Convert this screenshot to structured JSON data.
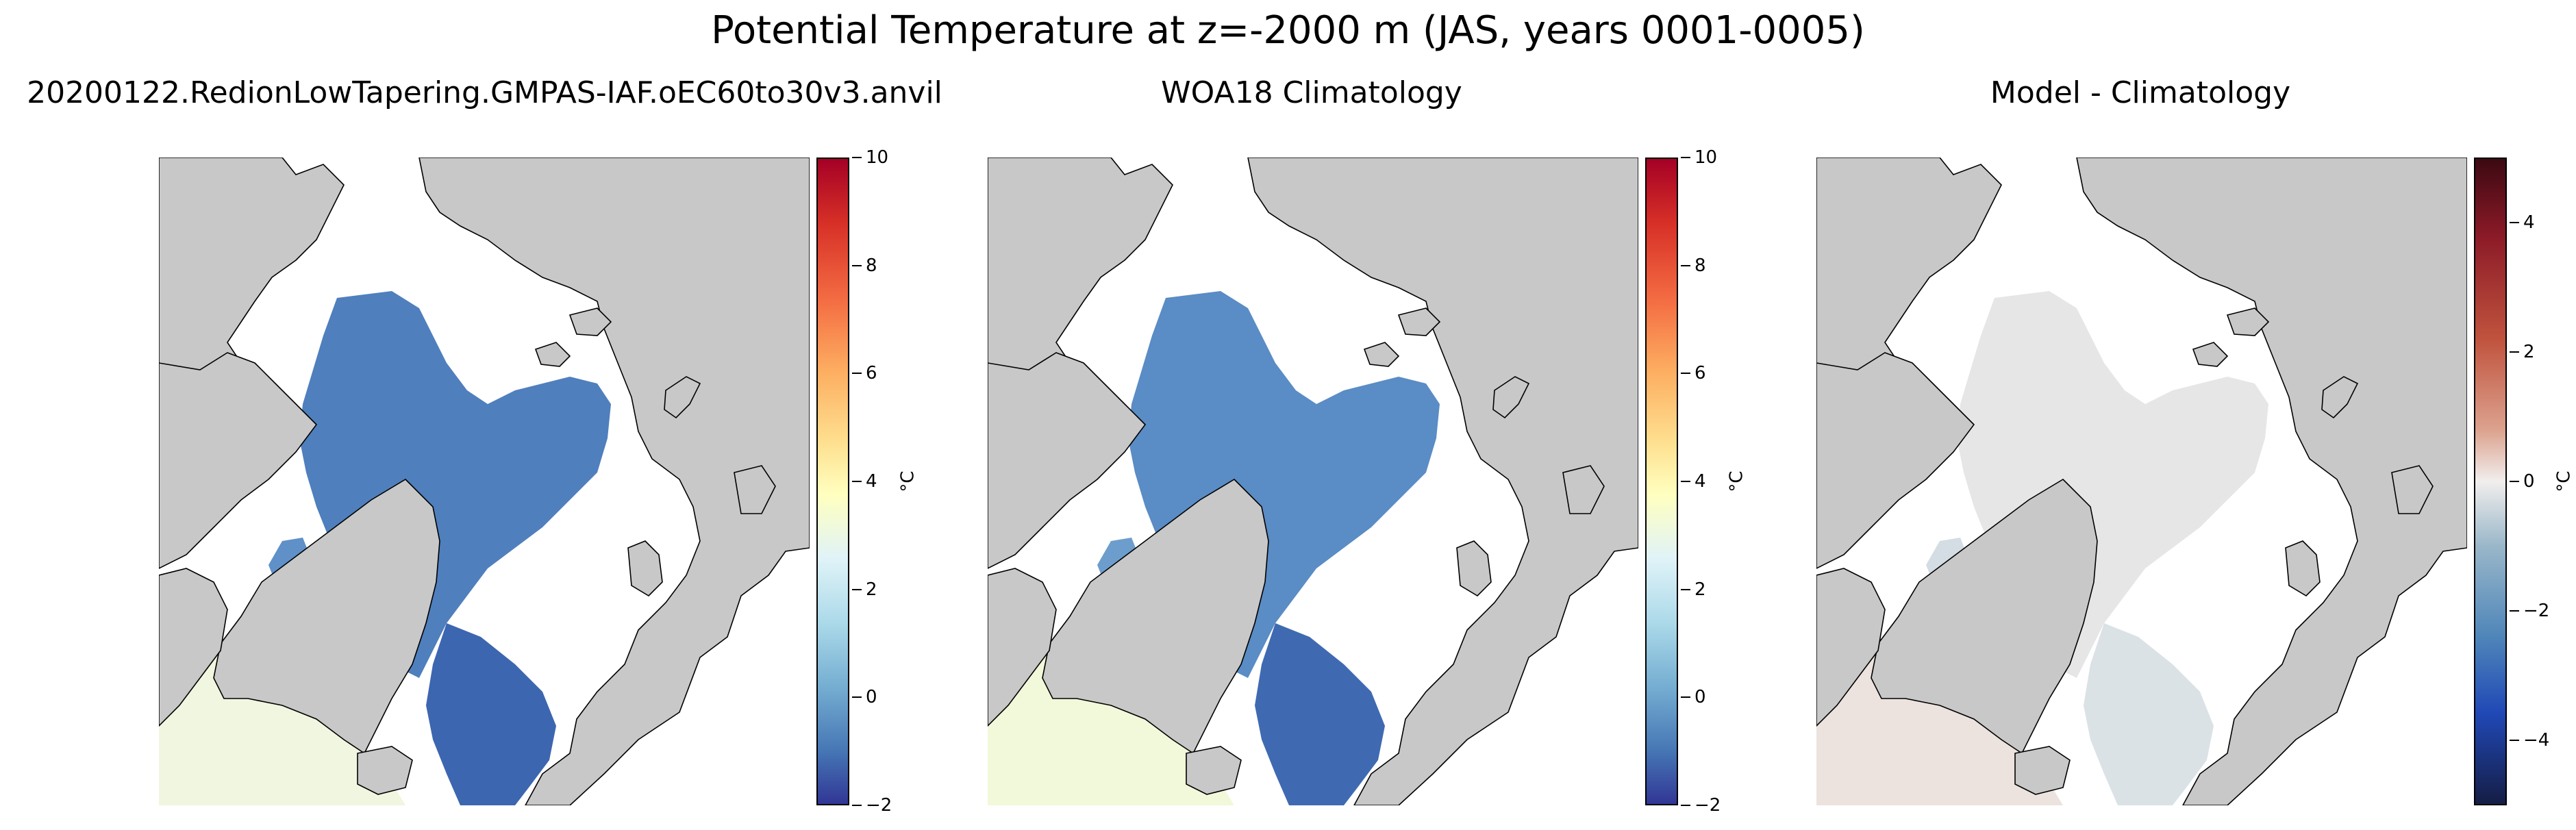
{
  "title": "Potential Temperature at z=-2000 m (JAS, years 0001-0005)",
  "colors": {
    "land": "#c8c8c8",
    "coast": "#000000",
    "ocean_nodata": "#ffffff"
  },
  "chart_data": [
    {
      "type": "heatmap",
      "title": "20200122.RedionLowTapering.GMPAS-IAF.oEC60to30v3.anvil",
      "colorbar": {
        "label": "°C",
        "range": [
          -2,
          10
        ],
        "ticks": [
          "10",
          "8",
          "6",
          "4",
          "2",
          "0",
          "−2"
        ],
        "colormap": "RdYlBu_r"
      },
      "fields": {
        "arctic_basin": "≈ -0.5 °C",
        "nordic_seas": "≈ -0.9 °C",
        "baffin_bay": "≈ 0 °C",
        "north_atlantic": "≈ 3.5 °C"
      }
    },
    {
      "type": "heatmap",
      "title": "WOA18 Climatology",
      "colorbar": {
        "label": "°C",
        "range": [
          -2,
          10
        ],
        "ticks": [
          "10",
          "8",
          "6",
          "4",
          "2",
          "0",
          "−2"
        ],
        "colormap": "RdYlBu_r"
      },
      "fields": {
        "arctic_basin": "≈ -0.4 °C",
        "nordic_seas": "≈ -0.9 °C",
        "baffin_bay": "≈ 0.3 °C",
        "north_atlantic": "≈ 3.5 °C"
      }
    },
    {
      "type": "heatmap",
      "title": "Model - Climatology",
      "colorbar": {
        "label": "°C",
        "range": [
          -5,
          5
        ],
        "ticks": [
          "4",
          "2",
          "0",
          "−2",
          "−4"
        ],
        "colormap": "balance"
      },
      "fields": {
        "arctic_basin": "≈ 0 °C",
        "nordic_seas": "≈ -0.1 °C",
        "baffin_bay": "≈ -0.3 °C",
        "north_atlantic": "≈ 0.3 °C"
      }
    }
  ]
}
